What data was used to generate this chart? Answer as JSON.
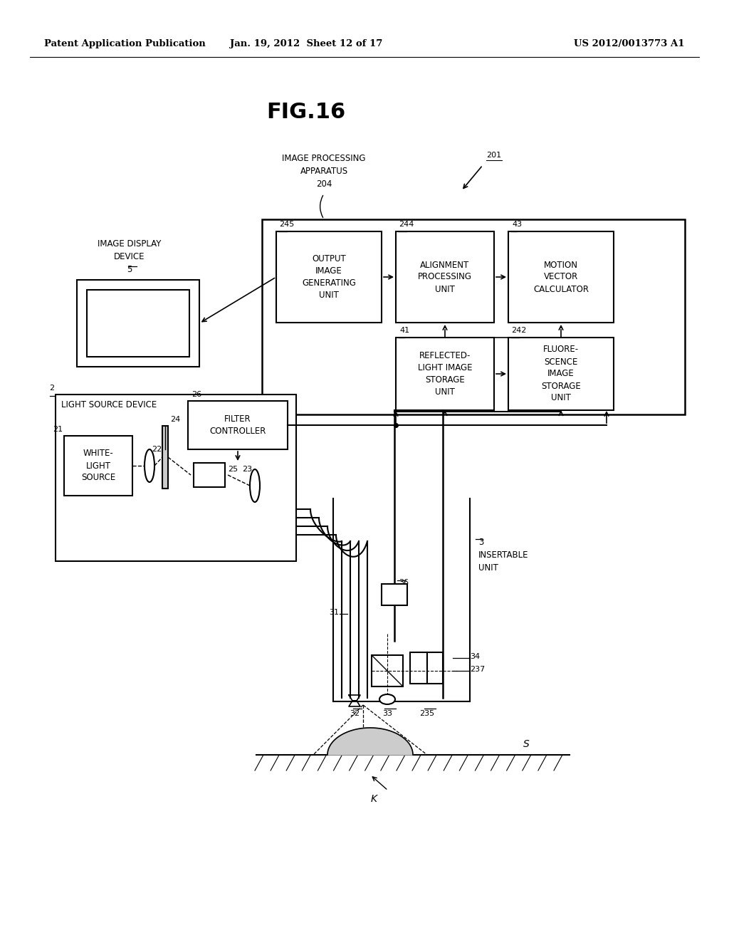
{
  "bg_color": "#ffffff",
  "header_left": "Patent Application Publication",
  "header_center": "Jan. 19, 2012  Sheet 12 of 17",
  "header_right": "US 2012/0013773 A1",
  "fig_title": "FIG.16",
  "label_201": "201",
  "label_ipa": "IMAGE PROCESSING\nAPPARATUS\n204",
  "label_idd": "IMAGE DISPLAY\nDEVICE\n5",
  "label_oigu": "OUTPUT\nIMAGE\nGENERATING\nUNIT",
  "num_oigu": "245",
  "label_apu": "ALIGNMENT\nPROCESSING\nUNIT",
  "num_apu": "244",
  "label_mvc": "MOTION\nVECTOR\nCALCULATOR",
  "num_mvc": "43",
  "label_rlisu": "REFLECTED-\nLIGHT IMAGE\nSTORAGE\nUNIT",
  "num_rlisu": "41",
  "label_fisu": "FLUORE-\nSCENCE\nIMAGE\nSTORAGE\nUNIT",
  "num_fisu": "242",
  "label_lsd": "LIGHT SOURCE DEVICE",
  "num_lsd": "2",
  "label_wls": "WHITE-\nLIGHT\nSOURCE",
  "num_wls": "21",
  "num_lens22": "22",
  "num_filter24": "24",
  "label_fc": "FILTER\nCONTROLLER",
  "num_fc": "26",
  "num_fe": "25",
  "num_lens23": "23",
  "label_iu": "3\nINSERTABLE\nUNIT",
  "num_31": "31",
  "num_36": "36",
  "num_32": "32",
  "num_33": "33",
  "num_34": "34",
  "num_235": "235",
  "num_237": "237",
  "label_K": "K",
  "label_S": "S"
}
